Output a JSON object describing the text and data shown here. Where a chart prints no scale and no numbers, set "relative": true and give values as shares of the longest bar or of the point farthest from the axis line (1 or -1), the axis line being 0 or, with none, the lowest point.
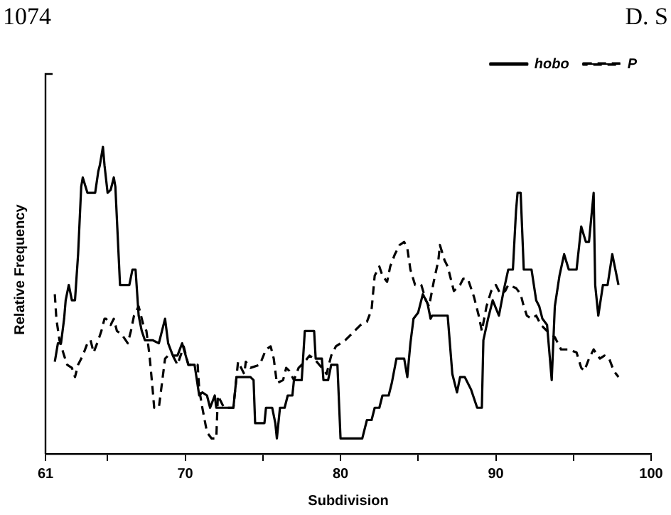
{
  "chart_data": {
    "type": "line",
    "xlabel": "Subdivision",
    "ylabel": "Relative Frequency",
    "relative": true,
    "annotations": [
      "1074",
      "D. S"
    ],
    "xlim": [
      61,
      100
    ],
    "xticks": [
      61,
      {
        "value": 65,
        "label": null
      },
      70,
      {
        "value": 75,
        "label": null
      },
      80,
      {
        "value": 85,
        "label": null
      },
      90,
      {
        "value": 95,
        "label": null
      },
      100
    ],
    "legend": "top right",
    "grid": false,
    "marker": "none",
    "series": [
      {
        "name": "hobo",
        "color": "#000000",
        "line_style": "solid",
        "x": [
          61.6,
          61.8,
          62.0,
          62.2,
          62.3,
          62.5,
          62.7,
          62.9,
          63.1,
          63.3,
          63.4,
          63.7,
          64.2,
          64.4,
          64.5,
          64.7,
          64.8,
          65.0,
          65.2,
          65.4,
          65.5,
          65.8,
          66.4,
          66.6,
          66.8,
          67.0,
          67.2,
          67.4,
          67.9,
          68.3,
          68.7,
          68.9,
          69.2,
          69.5,
          69.8,
          70.2,
          70.6,
          70.9,
          71.1,
          71.4,
          71.6,
          71.9,
          72.0,
          73.1,
          73.3,
          74.2,
          74.4,
          74.5,
          75.1,
          75.2,
          75.6,
          75.8,
          75.9,
          76.1,
          76.4,
          76.6,
          76.9,
          77.0,
          77.5,
          77.7,
          78.3,
          78.4,
          78.8,
          78.9,
          79.2,
          79.4,
          79.8,
          80.0,
          81.4,
          81.7,
          82.0,
          82.2,
          82.5,
          82.7,
          83.1,
          83.3,
          83.6,
          84.1,
          84.3,
          84.5,
          84.7,
          85.0,
          85.3,
          85.6,
          85.8,
          85.9,
          86.9,
          87.2,
          87.5,
          87.7,
          88.0,
          88.4,
          88.8,
          89.1,
          89.2,
          89.5,
          89.8,
          90.2,
          90.5,
          90.8,
          91.1,
          91.3,
          91.4,
          91.6,
          91.8,
          92.3,
          92.6,
          92.8,
          93.0,
          93.3,
          93.6,
          93.8,
          94.1,
          94.4,
          94.7,
          95.2,
          95.5,
          95.8,
          96.0,
          96.3,
          96.4,
          96.6,
          96.9,
          97.2,
          97.5,
          97.9
        ],
        "values": [
          0.3,
          0.36,
          0.36,
          0.44,
          0.5,
          0.55,
          0.5,
          0.5,
          0.65,
          0.87,
          0.9,
          0.85,
          0.85,
          0.92,
          0.94,
          1.0,
          0.94,
          0.85,
          0.86,
          0.9,
          0.87,
          0.55,
          0.55,
          0.6,
          0.6,
          0.45,
          0.4,
          0.37,
          0.37,
          0.36,
          0.44,
          0.36,
          0.32,
          0.32,
          0.36,
          0.29,
          0.29,
          0.19,
          0.2,
          0.19,
          0.15,
          0.19,
          0.15,
          0.15,
          0.25,
          0.25,
          0.24,
          0.1,
          0.1,
          0.15,
          0.15,
          0.1,
          0.05,
          0.15,
          0.15,
          0.19,
          0.19,
          0.24,
          0.24,
          0.4,
          0.4,
          0.31,
          0.31,
          0.24,
          0.24,
          0.29,
          0.29,
          0.05,
          0.05,
          0.11,
          0.11,
          0.15,
          0.15,
          0.19,
          0.19,
          0.23,
          0.31,
          0.31,
          0.25,
          0.36,
          0.44,
          0.46,
          0.52,
          0.49,
          0.44,
          0.45,
          0.45,
          0.26,
          0.2,
          0.25,
          0.25,
          0.21,
          0.15,
          0.15,
          0.37,
          0.44,
          0.5,
          0.45,
          0.53,
          0.6,
          0.6,
          0.79,
          0.85,
          0.85,
          0.6,
          0.6,
          0.5,
          0.48,
          0.44,
          0.42,
          0.24,
          0.48,
          0.58,
          0.65,
          0.6,
          0.6,
          0.74,
          0.69,
          0.69,
          0.85,
          0.55,
          0.45,
          0.55,
          0.55,
          0.65,
          0.55
        ]
      },
      {
        "name": "P",
        "color": "#000000",
        "line_style": "dashed",
        "x": [
          61.6,
          61.7,
          61.9,
          62.2,
          62.4,
          62.7,
          62.9,
          63.1,
          63.4,
          63.7,
          63.9,
          64.1,
          64.4,
          64.6,
          64.8,
          64.9,
          65.2,
          65.4,
          65.6,
          65.9,
          66.3,
          66.5,
          66.7,
          67.0,
          67.3,
          67.5,
          67.7,
          67.9,
          68.0,
          68.3,
          68.4,
          68.7,
          68.9,
          69.2,
          69.5,
          69.7,
          69.9,
          70.2,
          70.8,
          70.9,
          71.1,
          71.4,
          71.7,
          72.0,
          72.1,
          72.5,
          73.1,
          73.4,
          73.8,
          73.9,
          74.2,
          74.8,
          75.2,
          75.5,
          75.7,
          75.9,
          76.3,
          76.5,
          76.7,
          77.0,
          77.3,
          77.7,
          78.0,
          78.3,
          78.8,
          79.1,
          79.4,
          79.7,
          80.3,
          80.9,
          81.3,
          81.7,
          82.0,
          82.2,
          82.5,
          82.7,
          83.0,
          83.2,
          83.5,
          83.8,
          84.1,
          84.3,
          84.5,
          84.8,
          85.2,
          85.5,
          85.7,
          86.0,
          86.3,
          86.4,
          86.7,
          86.9,
          87.3,
          87.7,
          87.9,
          88.2,
          88.6,
          88.9,
          89.1,
          89.4,
          89.7,
          90.0,
          90.3,
          90.6,
          90.8,
          91.3,
          91.6,
          91.8,
          92.0,
          92.3,
          92.6,
          92.9,
          93.3,
          93.8,
          94.2,
          94.7,
          95.2,
          95.5,
          95.7,
          96.0,
          96.3,
          96.7,
          97.0,
          97.3,
          97.6,
          97.9
        ],
        "values": [
          0.52,
          0.44,
          0.37,
          0.32,
          0.29,
          0.28,
          0.25,
          0.29,
          0.32,
          0.36,
          0.37,
          0.33,
          0.37,
          0.4,
          0.44,
          0.44,
          0.42,
          0.44,
          0.4,
          0.39,
          0.36,
          0.4,
          0.45,
          0.48,
          0.42,
          0.4,
          0.32,
          0.21,
          0.15,
          0.15,
          0.19,
          0.31,
          0.32,
          0.32,
          0.29,
          0.32,
          0.35,
          0.29,
          0.29,
          0.21,
          0.15,
          0.07,
          0.05,
          0.05,
          0.19,
          0.15,
          0.15,
          0.3,
          0.26,
          0.3,
          0.28,
          0.29,
          0.34,
          0.35,
          0.31,
          0.23,
          0.24,
          0.28,
          0.27,
          0.24,
          0.28,
          0.3,
          0.32,
          0.31,
          0.28,
          0.26,
          0.32,
          0.35,
          0.37,
          0.4,
          0.42,
          0.43,
          0.47,
          0.58,
          0.61,
          0.58,
          0.56,
          0.61,
          0.65,
          0.68,
          0.69,
          0.67,
          0.6,
          0.55,
          0.55,
          0.5,
          0.48,
          0.56,
          0.63,
          0.68,
          0.63,
          0.61,
          0.53,
          0.55,
          0.57,
          0.57,
          0.51,
          0.45,
          0.4,
          0.48,
          0.53,
          0.55,
          0.52,
          0.53,
          0.55,
          0.54,
          0.52,
          0.48,
          0.45,
          0.44,
          0.45,
          0.42,
          0.4,
          0.38,
          0.34,
          0.34,
          0.33,
          0.28,
          0.27,
          0.31,
          0.34,
          0.31,
          0.32,
          0.31,
          0.27,
          0.25
        ]
      }
    ]
  }
}
